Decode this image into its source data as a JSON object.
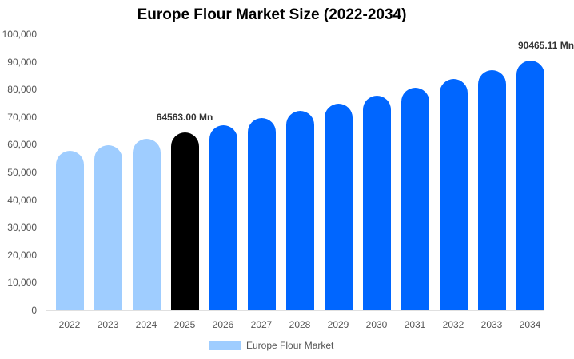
{
  "chart_data": {
    "type": "bar",
    "title": "Europe Flour Market Size (2022-2034)",
    "xlabel": "",
    "ylabel": "",
    "ylim": [
      0,
      100000
    ],
    "yticks": [
      "0",
      "10,000",
      "20,000",
      "30,000",
      "40,000",
      "50,000",
      "60,000",
      "70,000",
      "80,000",
      "90,000",
      "100,000"
    ],
    "categories": [
      "2022",
      "2023",
      "2024",
      "2025",
      "2026",
      "2027",
      "2028",
      "2029",
      "2030",
      "2031",
      "2032",
      "2033",
      "2034"
    ],
    "series": [
      {
        "name": "Europe Flour Market",
        "values": [
          57730,
          59920,
          62200,
          64563,
          67020,
          69570,
          72210,
          74960,
          77810,
          80770,
          83840,
          87030,
          90465.11
        ]
      }
    ],
    "bar_colors": [
      "#9fcdff",
      "#9fcdff",
      "#9fcdff",
      "#000000",
      "#0066ff",
      "#0066ff",
      "#0066ff",
      "#0066ff",
      "#0066ff",
      "#0066ff",
      "#0066ff",
      "#0066ff",
      "#0066ff"
    ],
    "annotations": [
      {
        "category": "2025",
        "text": "64563.00 Mn"
      },
      {
        "category": "2034",
        "text": "90465.11 Mn"
      }
    ],
    "legend": {
      "position": "bottom",
      "entries": [
        {
          "label": "Europe Flour Market",
          "color": "#9fcdff"
        }
      ]
    },
    "grid": false
  }
}
